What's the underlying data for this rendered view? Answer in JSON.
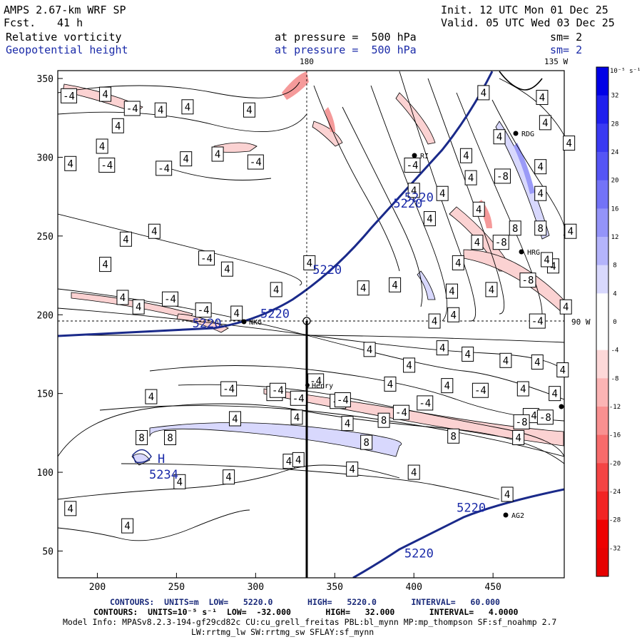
{
  "header": {
    "model": "AMPS 2.67-km WRF SP",
    "forecast_label": "Fcst.",
    "forecast_hours": "41 h",
    "init": "Init. 12 UTC Mon 01 Dec 25",
    "valid": "Valid. 05 UTC Wed 03 Dec 25",
    "field1_name": "Relative vorticity",
    "field1_level": "at pressure =  500 hPa",
    "field1_sm": "sm= 2",
    "field2_name": "Geopotential height",
    "field2_level": "at pressure =  500 hPa",
    "field2_sm": "sm= 2"
  },
  "map_labels": {
    "lon_180": "180",
    "lon_135w": "135 W",
    "lat_90w": "90 W",
    "high_marker": "H",
    "high_value": "5234"
  },
  "stations": [
    {
      "name": "RDG"
    },
    {
      "name": "RI"
    },
    {
      "name": "HRG"
    },
    {
      "name": "NKG"
    },
    {
      "name": "Henry"
    },
    {
      "name": "AG2"
    }
  ],
  "colorbar": {
    "unit": "10⁻⁵ s⁻¹",
    "ticks": [
      "32",
      "28",
      "24",
      "20",
      "16",
      "12",
      "8",
      "4",
      "0",
      "-4",
      "-8",
      "-12",
      "-16",
      "-20",
      "-24",
      "-28",
      "-32"
    ],
    "colors_top_to_bottom": [
      "#0000e6",
      "#1f1fee",
      "#3a3af2",
      "#5555f5",
      "#7373f7",
      "#9494f9",
      "#b4b4fb",
      "#d8d8fd",
      "#ffffff",
      "#ffffff",
      "#fdd8d8",
      "#fbb4b4",
      "#f99090",
      "#f76b6b",
      "#f44444",
      "#f22424",
      "#ee0000",
      "#e60000"
    ],
    "accent_blue": "#0000e6",
    "accent_red": "#e60000"
  },
  "chart_data": {
    "type": "contour_map",
    "xlim": [
      175,
      495
    ],
    "ylim": [
      33,
      355
    ],
    "x_ticks": [
      "200",
      "250",
      "300",
      "350",
      "400",
      "450"
    ],
    "y_ticks": [
      "50",
      "100",
      "150",
      "200",
      "250",
      "300",
      "350"
    ],
    "height_contours": {
      "units": "m",
      "low": "5220.0",
      "high": "5220.0",
      "interval": "60.000",
      "label": "5220"
    },
    "vorticity_contours": {
      "units": "10⁻⁵ s⁻¹",
      "low": "-32.000",
      "high": "32.000",
      "interval": "4.0000"
    },
    "contour_labels": [
      {
        "x": 182,
        "y": 339,
        "v": "-4"
      },
      {
        "x": 205,
        "y": 340,
        "v": "4"
      },
      {
        "x": 222,
        "y": 331,
        "v": "-4"
      },
      {
        "x": 240,
        "y": 330,
        "v": "4"
      },
      {
        "x": 257,
        "y": 332,
        "v": "4"
      },
      {
        "x": 296,
        "y": 330,
        "v": "4"
      },
      {
        "x": 213,
        "y": 320,
        "v": "4"
      },
      {
        "x": 203,
        "y": 307,
        "v": "4"
      },
      {
        "x": 183,
        "y": 296,
        "v": "4"
      },
      {
        "x": 206,
        "y": 295,
        "v": "-4"
      },
      {
        "x": 242,
        "y": 293,
        "v": "-4"
      },
      {
        "x": 276,
        "y": 302,
        "v": "4"
      },
      {
        "x": 300,
        "y": 297,
        "v": "-4"
      },
      {
        "x": 256,
        "y": 299,
        "v": "4"
      },
      {
        "x": 236,
        "y": 253,
        "v": "4"
      },
      {
        "x": 218,
        "y": 248,
        "v": "4"
      },
      {
        "x": 205,
        "y": 232,
        "v": "4"
      },
      {
        "x": 269,
        "y": 236,
        "v": "-4"
      },
      {
        "x": 282,
        "y": 229,
        "v": "4"
      },
      {
        "x": 246,
        "y": 210,
        "v": "-4"
      },
      {
        "x": 216,
        "y": 211,
        "v": "4"
      },
      {
        "x": 226,
        "y": 205,
        "v": "4"
      },
      {
        "x": 267,
        "y": 203,
        "v": "-4"
      },
      {
        "x": 288,
        "y": 201,
        "v": "4"
      },
      {
        "x": 313,
        "y": 216,
        "v": "4"
      },
      {
        "x": 334,
        "y": 233,
        "v": "4"
      },
      {
        "x": 368,
        "y": 217,
        "v": "4"
      },
      {
        "x": 388,
        "y": 219,
        "v": "4"
      },
      {
        "x": 399,
        "y": 295,
        "v": "-4"
      },
      {
        "x": 400,
        "y": 279,
        "v": "4"
      },
      {
        "x": 441,
        "y": 267,
        "v": "4"
      },
      {
        "x": 440,
        "y": 246,
        "v": "4"
      },
      {
        "x": 428,
        "y": 233,
        "v": "4"
      },
      {
        "x": 424,
        "y": 215,
        "v": "4"
      },
      {
        "x": 449,
        "y": 216,
        "v": "4"
      },
      {
        "x": 464,
        "y": 255,
        "v": "8"
      },
      {
        "x": 472,
        "y": 222,
        "v": "-8"
      },
      {
        "x": 455,
        "y": 246,
        "v": "-8"
      },
      {
        "x": 488,
        "y": 231,
        "v": "4"
      },
      {
        "x": 480,
        "y": 255,
        "v": "8"
      },
      {
        "x": 480,
        "y": 277,
        "v": "4"
      },
      {
        "x": 499,
        "y": 253,
        "v": "4"
      },
      {
        "x": 483,
        "y": 322,
        "v": "4"
      },
      {
        "x": 498,
        "y": 309,
        "v": "4"
      },
      {
        "x": 481,
        "y": 338,
        "v": "4"
      },
      {
        "x": 480,
        "y": 294,
        "v": "4"
      },
      {
        "x": 454,
        "y": 313,
        "v": "4"
      },
      {
        "x": 456,
        "y": 288,
        "v": "-8"
      },
      {
        "x": 436,
        "y": 287,
        "v": "4"
      },
      {
        "x": 433,
        "y": 301,
        "v": "4"
      },
      {
        "x": 444,
        "y": 341,
        "v": "4"
      },
      {
        "x": 418,
        "y": 277,
        "v": "4"
      },
      {
        "x": 410,
        "y": 261,
        "v": "4"
      },
      {
        "x": 484,
        "y": 235,
        "v": "4"
      },
      {
        "x": 478,
        "y": 196,
        "v": "-4"
      },
      {
        "x": 496,
        "y": 205,
        "v": "4"
      },
      {
        "x": 425,
        "y": 200,
        "v": "4"
      },
      {
        "x": 413,
        "y": 196,
        "v": "4"
      },
      {
        "x": 418,
        "y": 179,
        "v": "4"
      },
      {
        "x": 434,
        "y": 175,
        "v": "4"
      },
      {
        "x": 458,
        "y": 171,
        "v": "4"
      },
      {
        "x": 478,
        "y": 170,
        "v": "4"
      },
      {
        "x": 494,
        "y": 165,
        "v": "4"
      },
      {
        "x": 421,
        "y": 155,
        "v": "4"
      },
      {
        "x": 442,
        "y": 152,
        "v": "-4"
      },
      {
        "x": 469,
        "y": 153,
        "v": "4"
      },
      {
        "x": 474,
        "y": 136,
        "v": "-4"
      },
      {
        "x": 468,
        "y": 132,
        "v": "-8"
      },
      {
        "x": 483,
        "y": 135,
        "v": "-8"
      },
      {
        "x": 489,
        "y": 150,
        "v": "4"
      },
      {
        "x": 466,
        "y": 122,
        "v": "4"
      },
      {
        "x": 407,
        "y": 144,
        "v": "-4"
      },
      {
        "x": 392,
        "y": 138,
        "v": "-4"
      },
      {
        "x": 381,
        "y": 133,
        "v": "8"
      },
      {
        "x": 358,
        "y": 131,
        "v": "4"
      },
      {
        "x": 352,
        "y": 145,
        "v": "-4"
      },
      {
        "x": 355,
        "y": 146,
        "v": "-4"
      },
      {
        "x": 327,
        "y": 147,
        "v": "-4"
      },
      {
        "x": 312,
        "y": 150,
        "v": "-4"
      },
      {
        "x": 283,
        "y": 153,
        "v": "-4"
      },
      {
        "x": 234,
        "y": 148,
        "v": "4"
      },
      {
        "x": 287,
        "y": 134,
        "v": "4"
      },
      {
        "x": 326,
        "y": 135,
        "v": "4"
      },
      {
        "x": 228,
        "y": 122,
        "v": "8"
      },
      {
        "x": 246,
        "y": 122,
        "v": "8"
      },
      {
        "x": 370,
        "y": 119,
        "v": "8"
      },
      {
        "x": 425,
        "y": 123,
        "v": "8"
      },
      {
        "x": 338,
        "y": 158,
        "v": "-4"
      },
      {
        "x": 314,
        "y": 152,
        "v": "-4"
      },
      {
        "x": 372,
        "y": 178,
        "v": "4"
      },
      {
        "x": 397,
        "y": 168,
        "v": "4"
      },
      {
        "x": 385,
        "y": 156,
        "v": "4"
      },
      {
        "x": 321,
        "y": 107,
        "v": "4"
      },
      {
        "x": 327,
        "y": 108,
        "v": "4"
      },
      {
        "x": 361,
        "y": 102,
        "v": "4"
      },
      {
        "x": 283,
        "y": 97,
        "v": "4"
      },
      {
        "x": 252,
        "y": 94,
        "v": "4"
      },
      {
        "x": 459,
        "y": 86,
        "v": "4"
      },
      {
        "x": 183,
        "y": 77,
        "v": "4"
      },
      {
        "x": 219,
        "y": 66,
        "v": "4"
      },
      {
        "x": 400,
        "y": 100,
        "v": "4"
      }
    ],
    "height_labels": [
      {
        "x": 260,
        "y": 192,
        "v": "5220"
      },
      {
        "x": 303,
        "y": 198,
        "v": "5220"
      },
      {
        "x": 336,
        "y": 226,
        "v": "5220"
      },
      {
        "x": 387,
        "y": 268,
        "v": "5220"
      },
      {
        "x": 394,
        "y": 272,
        "v": "5220"
      },
      {
        "x": 427,
        "y": 75,
        "v": "5220"
      },
      {
        "x": 394,
        "y": 46,
        "v": "5220"
      }
    ]
  },
  "footer": {
    "contours1": "CONTOURS:  UNITS=m  LOW=   5220.0       HIGH=   5220.0       INTERVAL=   60.000",
    "contours2": "CONTOURS:  UNITS=10⁻⁵ s⁻¹  LOW=  -32.000       HIGH=   32.000       INTERVAL=   4.0000",
    "model_info": "Model Info: MPASv8.2.3-194-gf29cd82c CU:cu_grell_freitas PBL:bl_mynn MP:mp_thompson SF:sf_noahmp 2.7",
    "model_info2": "LW:rrtmg_lw SW:rrtmg_sw SFLAY:sf_mynn"
  }
}
